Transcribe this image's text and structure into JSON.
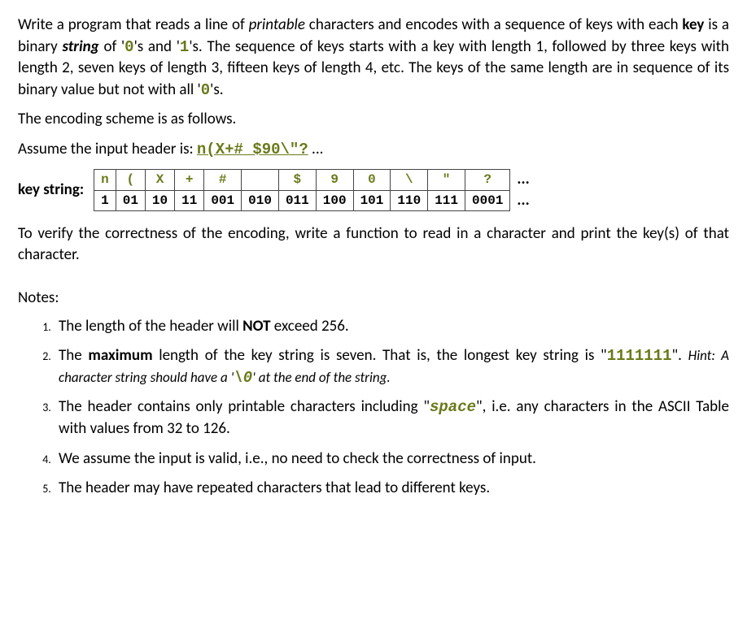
{
  "intro": {
    "p1_a": "Write a program that reads a line of ",
    "p1_printable": "printable",
    "p1_b": " characters and encodes with a sequence of keys with each ",
    "p1_key": "key",
    "p1_c": " is a binary ",
    "p1_string": "string",
    "p1_d": " of '",
    "p1_zero": "0",
    "p1_e": "'s and '",
    "p1_one": "1",
    "p1_f": "'s. The sequence of keys starts with a key with length 1, followed by three keys with length 2, seven keys of length 3, fifteen keys of length 4, etc. The keys of the same length are in sequence of its binary value but not with all '",
    "p1_zero2": "0",
    "p1_g": "'s."
  },
  "p2": "The encoding scheme is as follows.",
  "p3a": "Assume the input header is: ",
  "p3b": "n(X+# $90\\\"?",
  "p3c": " ...",
  "keylabel": "key string:",
  "table": {
    "chars": [
      "n",
      "(",
      "X",
      "+",
      "#",
      " ",
      "$",
      "9",
      "0",
      "\\",
      "\"",
      "?"
    ],
    "keys": [
      "1",
      "01",
      "10",
      "11",
      "001",
      "010",
      "011",
      "100",
      "101",
      "110",
      "111",
      "0001"
    ]
  },
  "ellipsis": "...",
  "verify": "To verify the correctness of the encoding, write a function to read in a character and print the key(s) of that character.",
  "notes_label": "Notes:",
  "notes": {
    "n1a": "The length of the header will ",
    "n1b": "NOT",
    "n1c": " exceed 256.",
    "n2a": "The ",
    "n2b": "maximum",
    "n2c": " length of the key string is seven. That is, the longest key string is \"",
    "n2d": "1111111",
    "n2e": "\". ",
    "n2hint_a": "Hint: A character string should have a '",
    "n2hint_b": "\\0",
    "n2hint_c": "' at the end of the string.",
    "n3a": "The header contains only printable characters including \"",
    "n3b": "space",
    "n3c": "\", i.e. any characters in the ASCII Table with values from 32 to 126.",
    "n4": "We assume the input is valid, i.e., no need to check the correctness of input.",
    "n5": "The header may have repeated characters that lead to different keys."
  }
}
